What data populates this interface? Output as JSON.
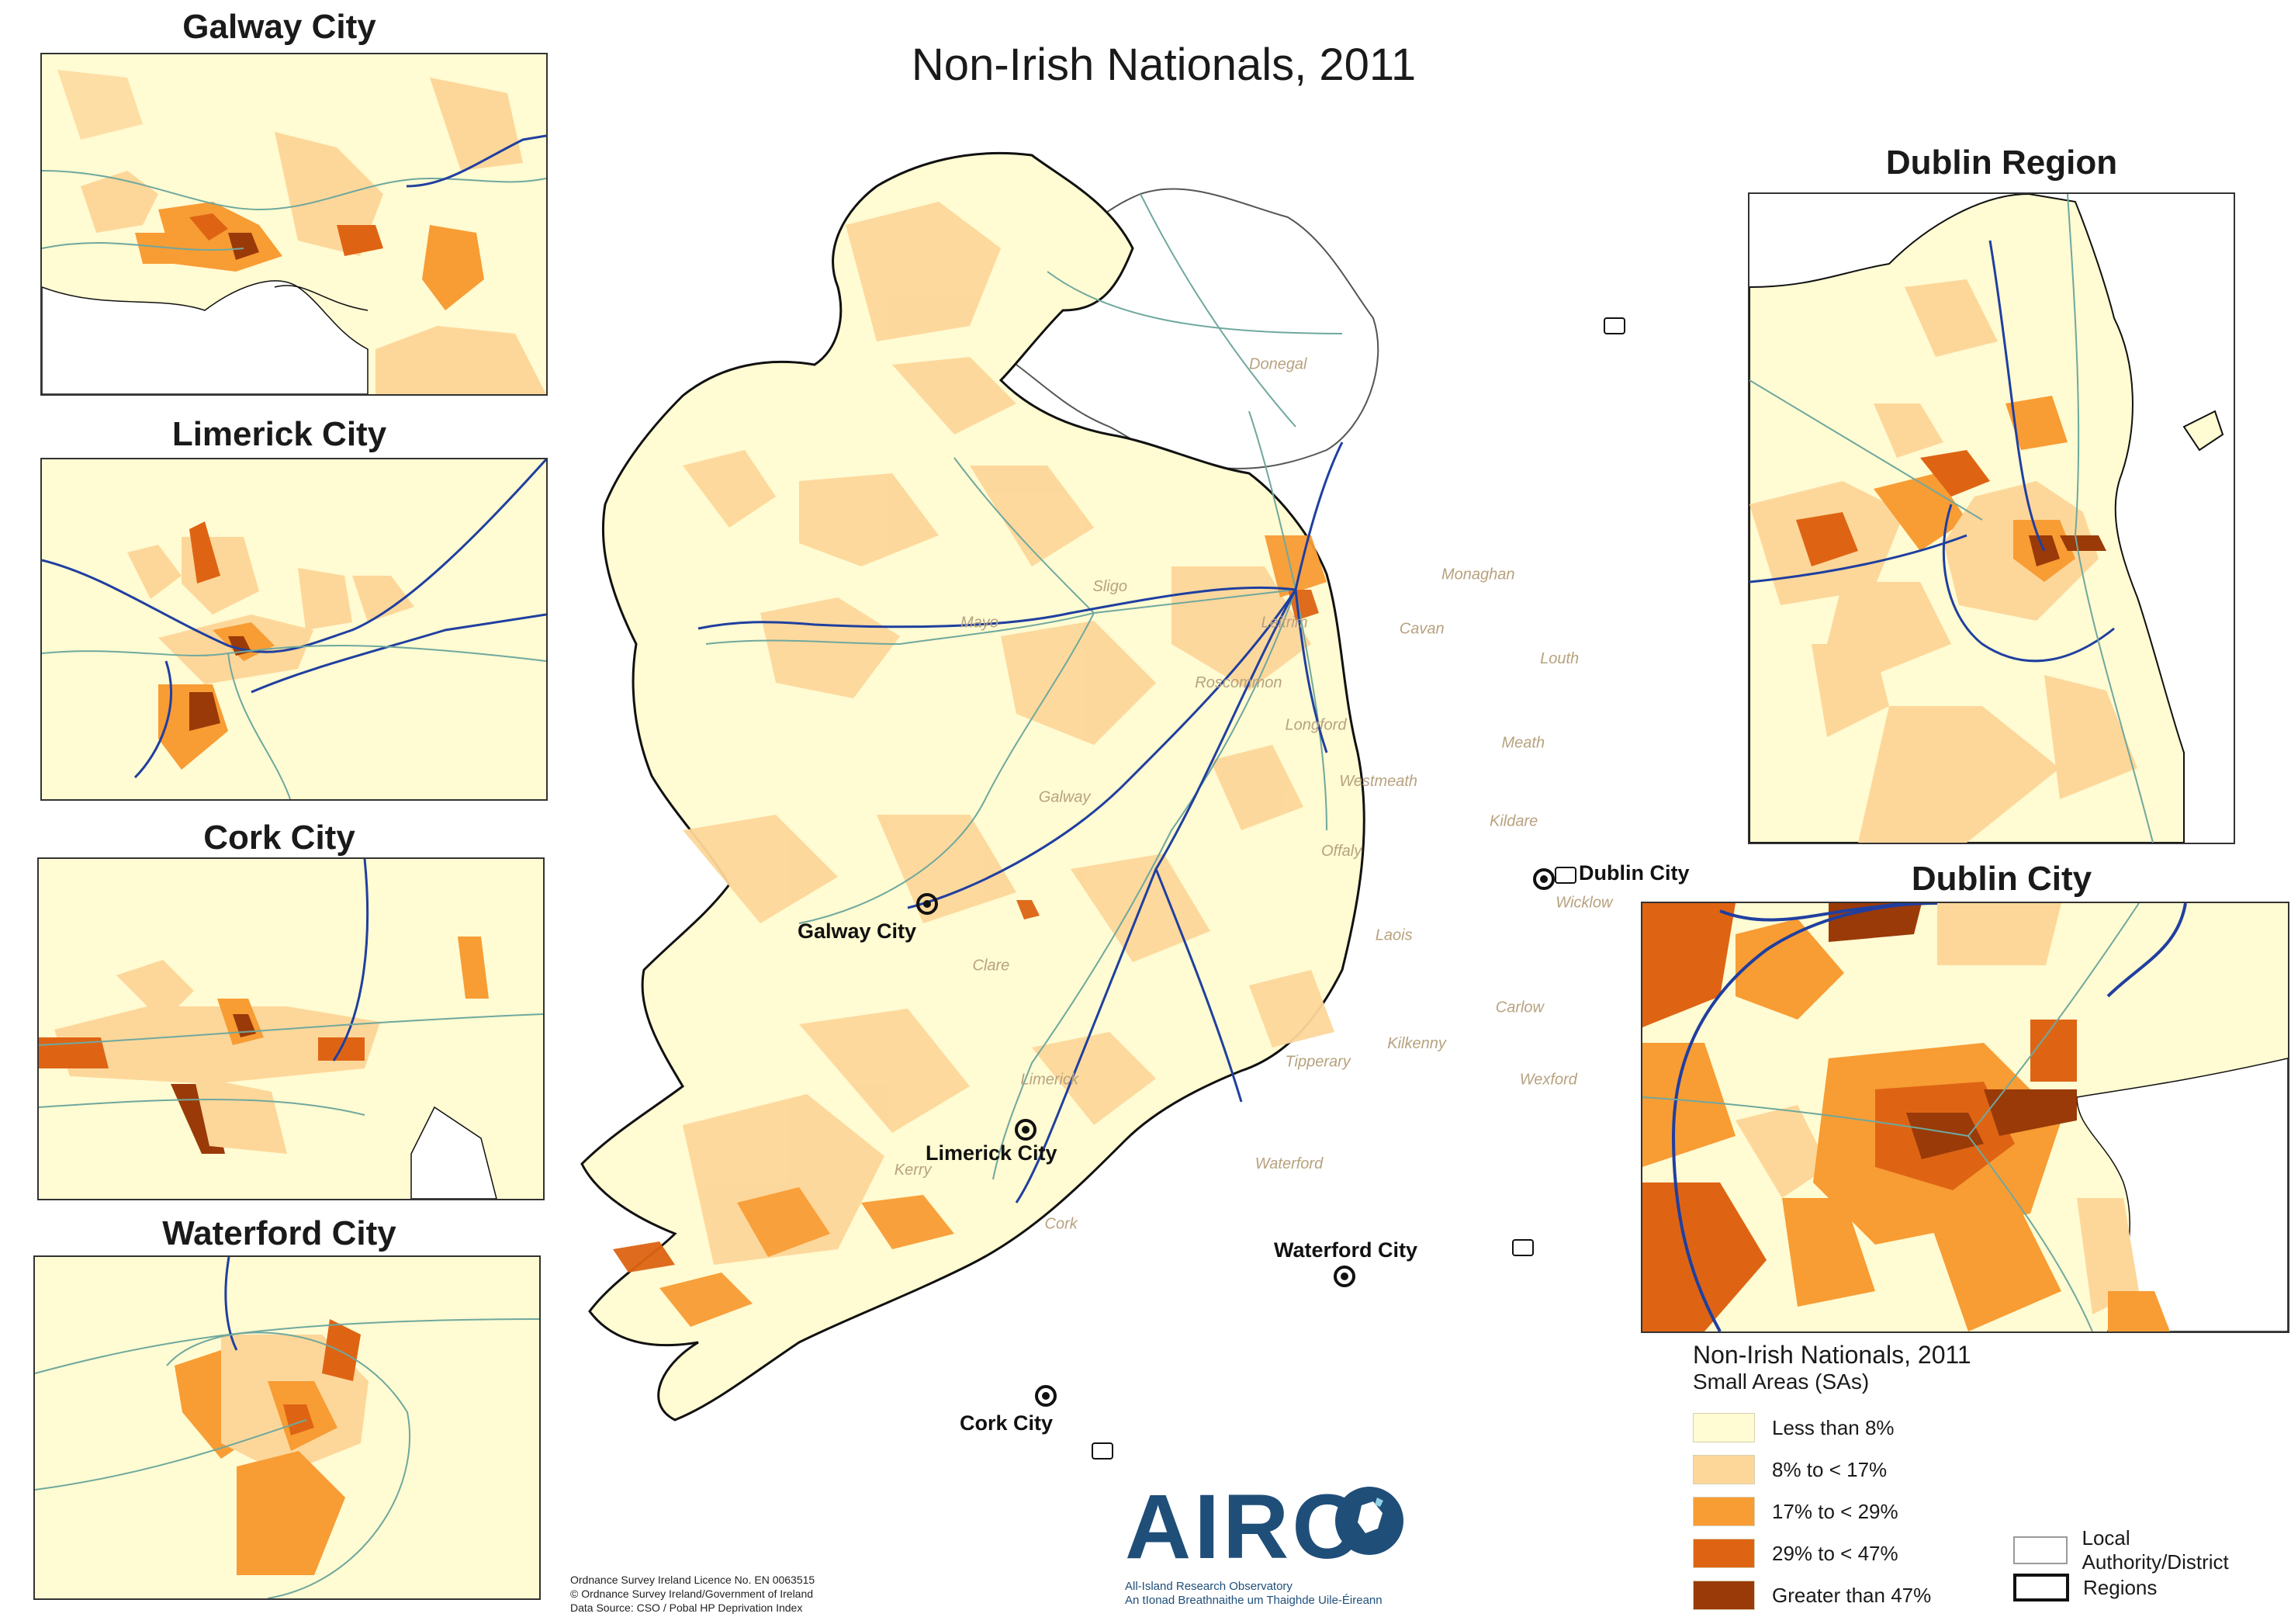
{
  "map": {
    "title": "Non-Irish Nationals, 2011",
    "colors": {
      "bin0": "#fffbd2",
      "bin1": "#fdd79a",
      "bin2": "#f89c34",
      "bin3": "#de6414",
      "bin4": "#9a3a08",
      "road": "#1f3fa0",
      "rail": "#6fa89e",
      "border": "#111111"
    },
    "counties": [
      "Donegal",
      "Sligo",
      "Mayo",
      "Leitrim",
      "Roscommon",
      "Monaghan",
      "Cavan",
      "Louth",
      "Longford",
      "Meath",
      "Westmeath",
      "Galway",
      "Offaly",
      "Kildare",
      "Laois",
      "Wicklow",
      "Clare",
      "Carlow",
      "Limerick",
      "Tipperary",
      "Kilkenny",
      "Wexford",
      "Kerry",
      "Waterford",
      "Cork"
    ],
    "cities": [
      "Dublin City",
      "Galway City",
      "Limerick City",
      "Waterford City",
      "Cork City"
    ]
  },
  "insets": {
    "galway": {
      "title": "Galway City"
    },
    "limerick": {
      "title": "Limerick City"
    },
    "cork": {
      "title": "Cork City"
    },
    "waterford": {
      "title": "Waterford City"
    },
    "dublin_region": {
      "title": "Dublin Region"
    },
    "dublin_city": {
      "title": "Dublin City"
    }
  },
  "legend": {
    "title": "Non-Irish Nationals, 2011",
    "subtitle": "Small Areas (SAs)",
    "classes": [
      {
        "label": "Less than 8%",
        "color": "#fffbd2"
      },
      {
        "label": "8% to < 17%",
        "color": "#fdd79a"
      },
      {
        "label": "17% to < 29%",
        "color": "#f89c34"
      },
      {
        "label": "29% to < 47%",
        "color": "#de6414"
      },
      {
        "label": "Greater than 47%",
        "color": "#9a3a08"
      }
    ],
    "boundaries": [
      {
        "label": "Local Authority/District"
      },
      {
        "label": "Regions"
      }
    ]
  },
  "logo": {
    "word": "AIRO",
    "line1": "All-Island Research Observatory",
    "line2": "An tIonad Breathnaithe um Thaighde Uile-Éireann"
  },
  "credits": [
    "Ordnance Survey Ireland Licence No. EN 0063515",
    "© Ordnance Survey Ireland/Government of Ireland",
    "Data Source: CSO / Pobal HP Deprivation Index"
  ]
}
